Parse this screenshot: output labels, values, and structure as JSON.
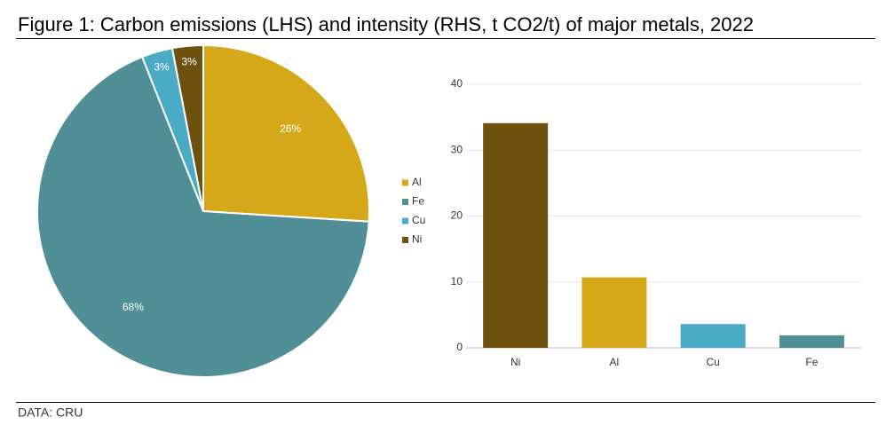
{
  "title": "Figure 1: Carbon emissions (LHS) and intensity (RHS, t CO2/t) of major metals, 2022",
  "source": "DATA: CRU",
  "chart_data": [
    {
      "type": "pie",
      "categories": [
        "Al",
        "Fe",
        "Cu",
        "Ni"
      ],
      "values": [
        26,
        68,
        3,
        3
      ],
      "value_labels": [
        "26%",
        "68%",
        "3%",
        "3%"
      ],
      "colors": [
        "#d4a819",
        "#508f97",
        "#4aabc7",
        "#6e510f"
      ],
      "legend": "right"
    },
    {
      "type": "bar",
      "categories": [
        "Ni",
        "Al",
        "Cu",
        "Fe"
      ],
      "values": [
        34.1,
        10.7,
        3.6,
        1.9
      ],
      "colors": [
        "#6e510f",
        "#d4a819",
        "#4aabc7",
        "#508f97"
      ],
      "ylim": [
        0,
        40
      ],
      "yticks": [
        0,
        10,
        20,
        30,
        40
      ],
      "grid": true
    }
  ]
}
